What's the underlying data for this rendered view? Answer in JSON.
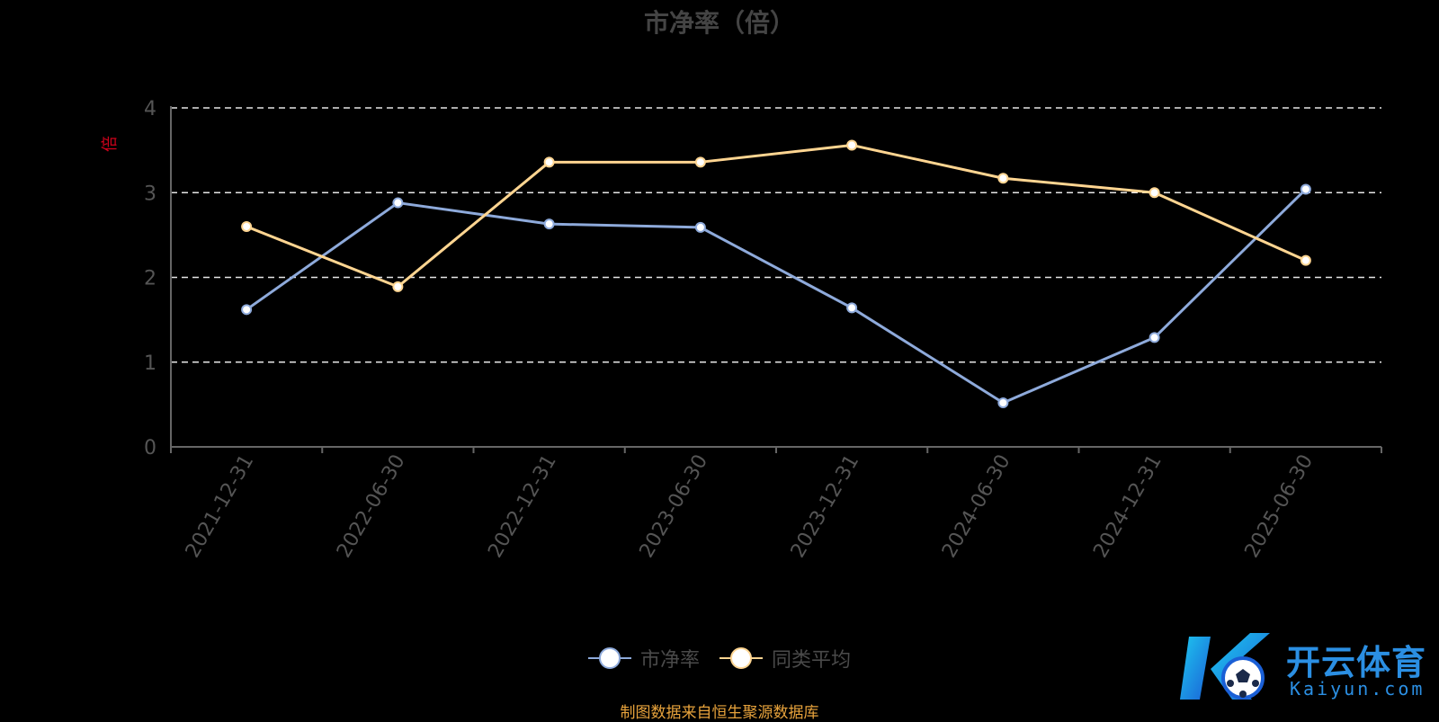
{
  "chart_data": {
    "type": "line",
    "title": "市净率（倍）",
    "ylabel": "倍",
    "categories": [
      "2021-12-31",
      "2022-06-30",
      "2022-12-31",
      "2023-06-30",
      "2023-12-31",
      "2024-06-30",
      "2024-12-31",
      "2025-06-30"
    ],
    "ylim": [
      0,
      4
    ],
    "yticks": [
      "0",
      "1",
      "2",
      "3",
      "4"
    ],
    "grid": true,
    "legend_position": "bottom",
    "series": [
      {
        "name": "市净率",
        "color": "#8eaadb",
        "values": [
          1.62,
          2.88,
          2.63,
          2.59,
          1.64,
          0.52,
          1.29,
          3.04
        ]
      },
      {
        "name": "同类平均",
        "color": "#ffd591",
        "values": [
          2.6,
          1.89,
          3.36,
          3.36,
          3.56,
          3.17,
          3.0,
          2.2
        ]
      }
    ],
    "source": "制图数据来自恒生聚源数据库"
  },
  "logo": {
    "text": "开云体育",
    "sub": "Kaiyun.com"
  }
}
